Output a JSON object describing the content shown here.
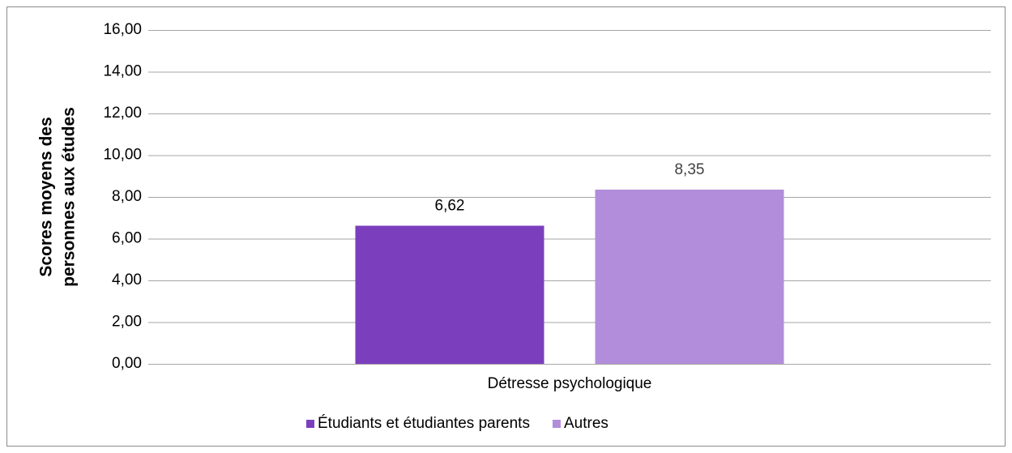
{
  "chart_data": {
    "type": "bar",
    "y_label_lines": [
      "Scores moyens des",
      "personnes aux études"
    ],
    "categories": [
      "Détresse psychologique"
    ],
    "series": [
      {
        "name": "Étudiants et étudiantes parents",
        "color": "#7b3fbe",
        "values": [
          6.62
        ],
        "value_labels": [
          "6,62"
        ]
      },
      {
        "name": "Autres",
        "color": "#b28ddb",
        "values": [
          8.35
        ],
        "value_labels": [
          "8,35"
        ]
      }
    ],
    "ylim": [
      0,
      16
    ],
    "yticks": [
      {
        "value": 0,
        "label": "0,00"
      },
      {
        "value": 2,
        "label": "2,00"
      },
      {
        "value": 4,
        "label": "4,00"
      },
      {
        "value": 6,
        "label": "6,00"
      },
      {
        "value": 8,
        "label": "8,00"
      },
      {
        "value": 10,
        "label": "10,00"
      },
      {
        "value": 12,
        "label": "12,00"
      },
      {
        "value": 14,
        "label": "14,00"
      },
      {
        "value": 16,
        "label": "16,00"
      }
    ],
    "grid": true,
    "legend": "bottom"
  }
}
